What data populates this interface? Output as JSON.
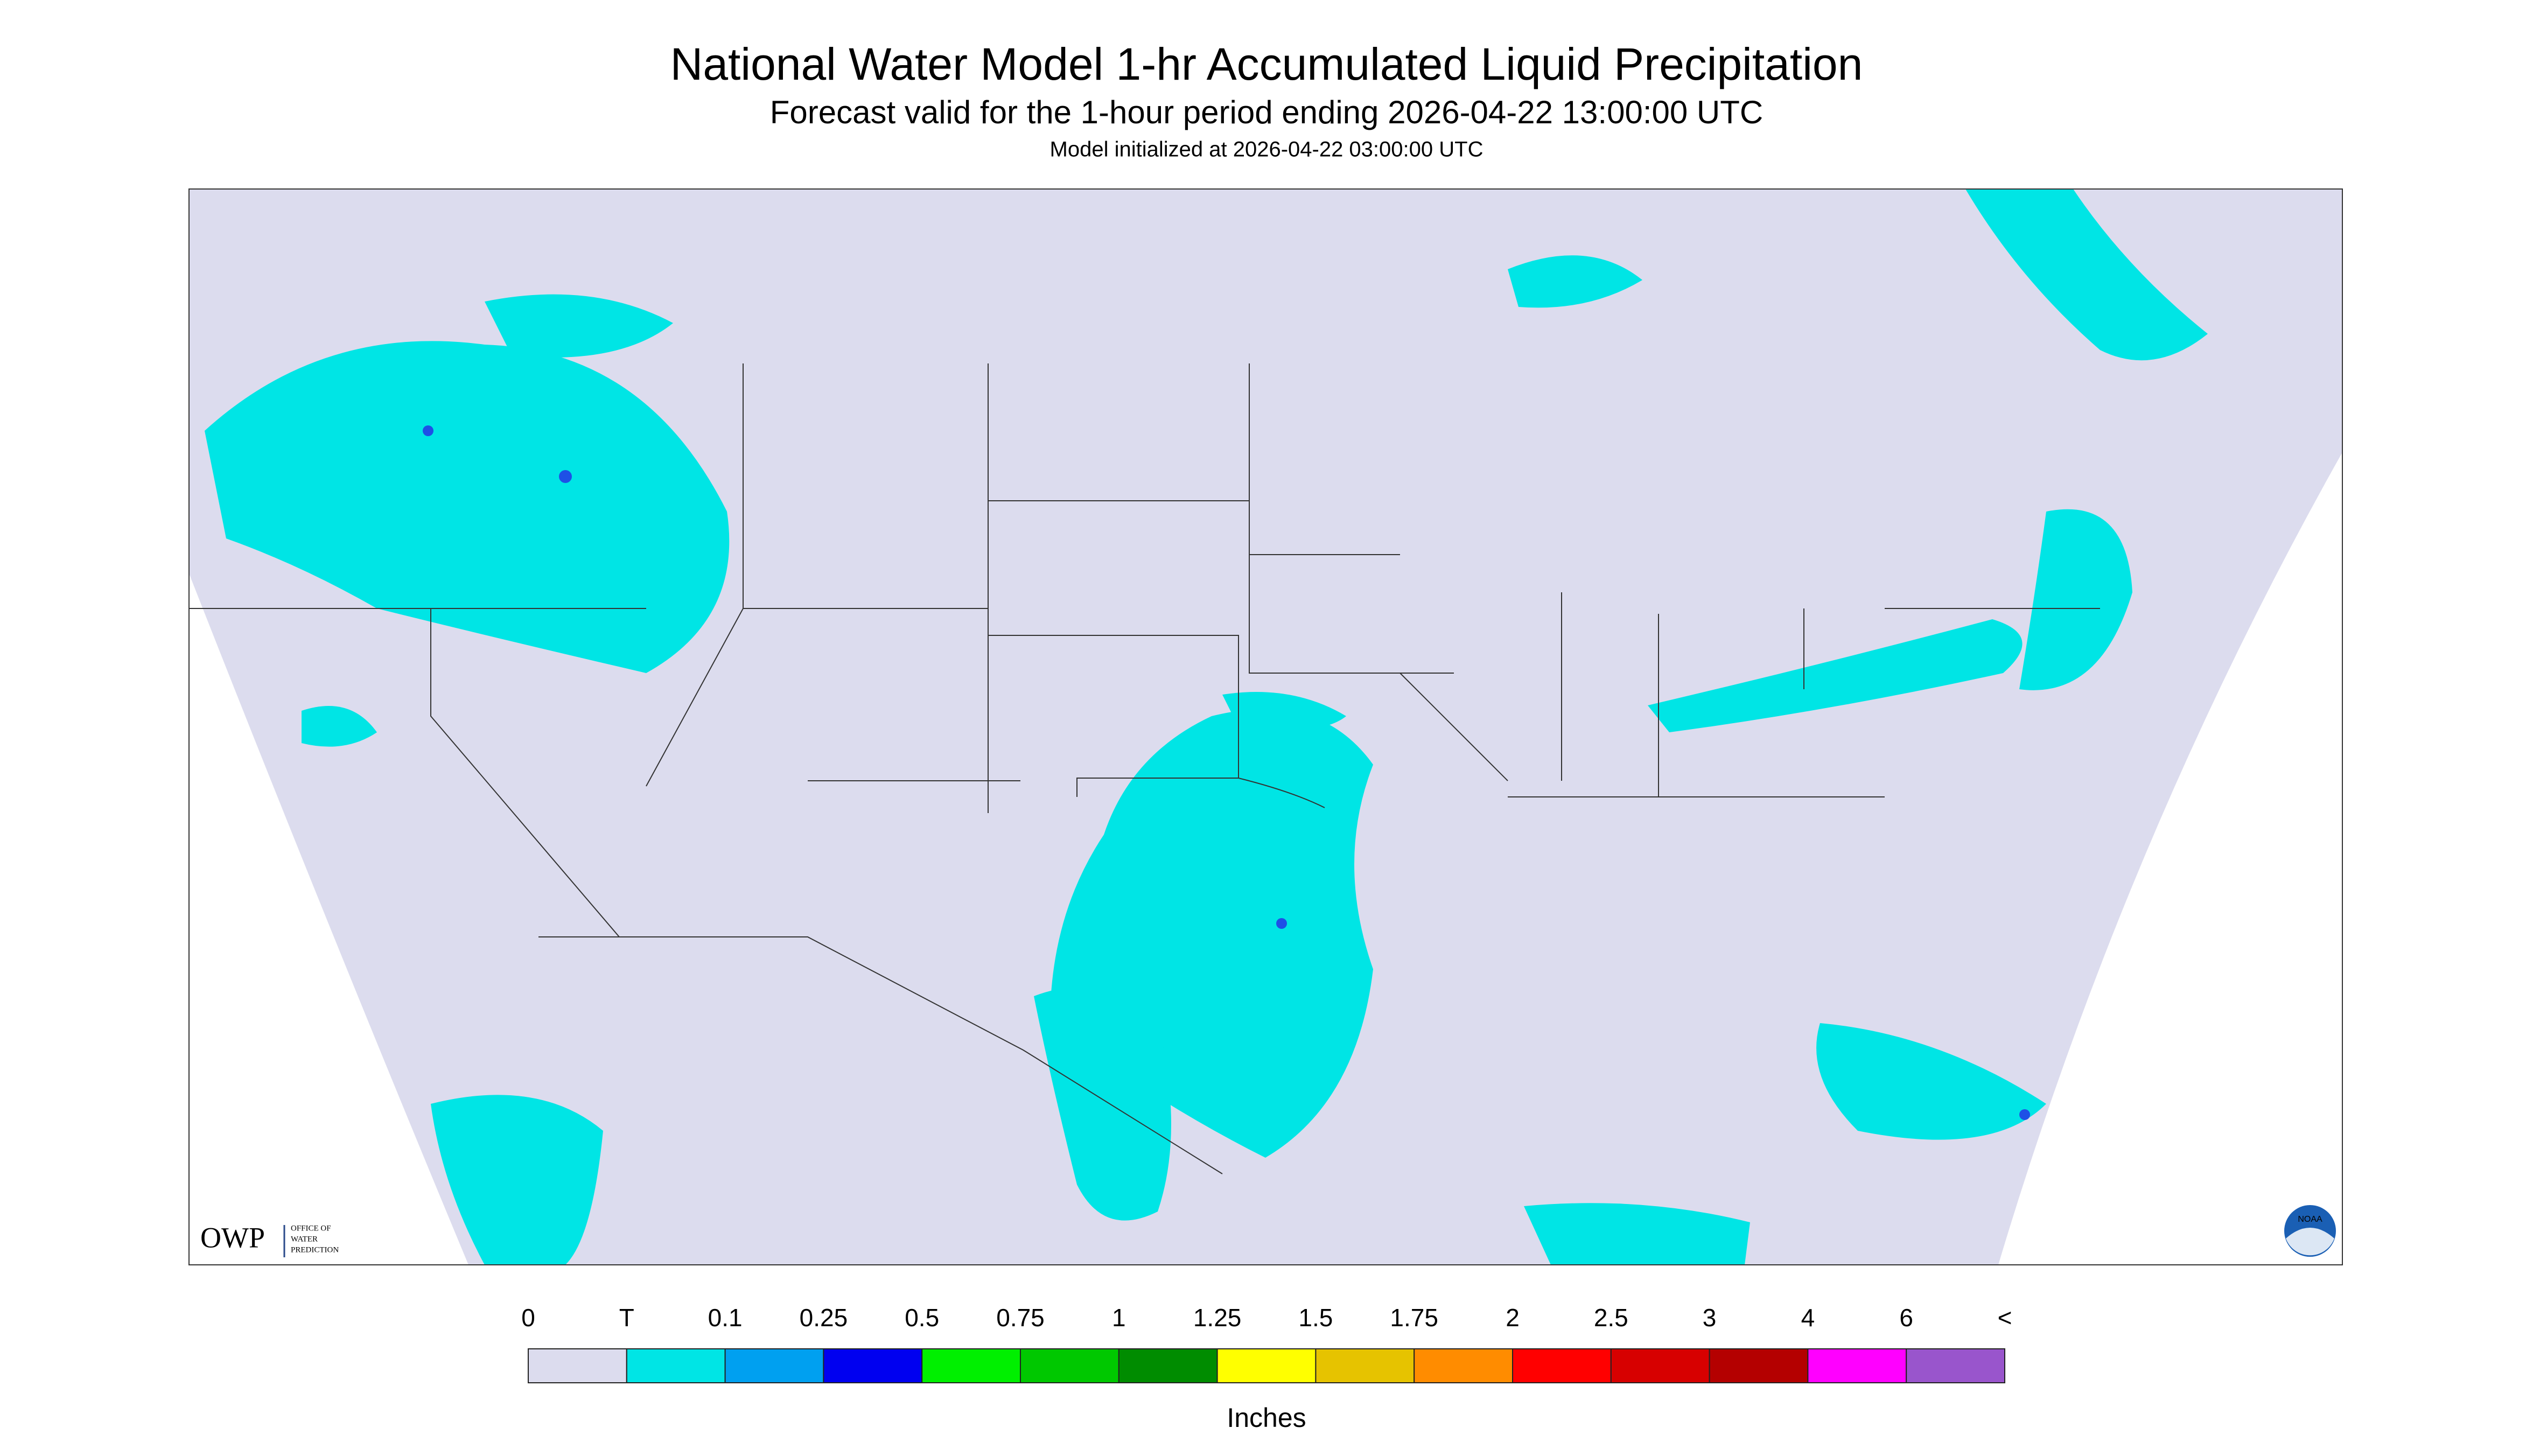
{
  "header": {
    "title": "National Water Model 1-hr Accumulated Liquid Precipitation",
    "subtitle": "Forecast valid for the 1-hour period ending 2026-04-22 13:00:00 UTC",
    "init": "Model initialized at 2026-04-22 03:00:00 UTC"
  },
  "map": {
    "background": "#dcdcee",
    "precip_color": "#00e5e5",
    "heavy_color": "#1e50e6"
  },
  "logos": {
    "owp": "OWP",
    "owp_text": [
      "OFFICE OF",
      "WATER",
      "PREDICTION"
    ],
    "noaa": "NOAA"
  },
  "legend": {
    "labels": [
      "0",
      "T",
      "0.1",
      "0.25",
      "0.5",
      "0.75",
      "1",
      "1.25",
      "1.5",
      "1.75",
      "2",
      "2.5",
      "3",
      "4",
      "6",
      "<"
    ],
    "colors": [
      "#dcdcee",
      "#00e5e5",
      "#00a0f0",
      "#0000f0",
      "#00f000",
      "#00c800",
      "#008c00",
      "#ffff00",
      "#e6c300",
      "#ff8c00",
      "#ff0000",
      "#d70000",
      "#b40000",
      "#ff00ff",
      "#9955cc"
    ],
    "unit": "Inches"
  }
}
